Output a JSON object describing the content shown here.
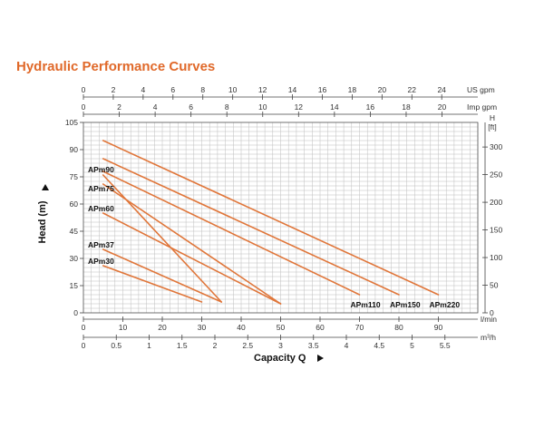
{
  "title": "Hydraulic Performance Curves",
  "chart_data": {
    "type": "line",
    "xlabel": "Capacity Q",
    "ylabel": "Head (m)",
    "x_unit": "l/min",
    "xlim": [
      0,
      100
    ],
    "ylim": [
      0,
      105
    ],
    "x_ticks": [
      0,
      10,
      20,
      30,
      40,
      50,
      60,
      70,
      80,
      90
    ],
    "y_ticks": [
      0,
      15,
      30,
      45,
      60,
      75,
      90,
      105
    ],
    "secondary_axes": {
      "top_outer": {
        "unit": "US gpm",
        "ticks": [
          "0",
          "2",
          "4",
          "6",
          "8",
          "10",
          "12",
          "14",
          "16",
          "18",
          "20",
          "22",
          "24"
        ]
      },
      "top_inner": {
        "unit": "Imp gpm",
        "ticks": [
          "0",
          "2",
          "4",
          "6",
          "8",
          "10",
          "12",
          "14",
          "16",
          "18",
          "20"
        ]
      },
      "bottom": {
        "unit": "m³/h",
        "ticks": [
          "0",
          "0.5",
          "1",
          "1.5",
          "2",
          "2.5",
          "3",
          "3.5",
          "4",
          "4.5",
          "5",
          "5.5"
        ]
      },
      "right": {
        "unit": "H\n[ft]",
        "unit_line1": "H",
        "unit_line2": "[ft]",
        "ticks": [
          "0",
          "50",
          "100",
          "150",
          "200",
          "250",
          "300"
        ]
      }
    },
    "grid": true,
    "series": [
      {
        "name": "APm30",
        "x": [
          5,
          30
        ],
        "y": [
          26,
          6
        ]
      },
      {
        "name": "APm37",
        "x": [
          5,
          35
        ],
        "y": [
          35,
          6
        ]
      },
      {
        "name": "APm60",
        "x": [
          5,
          50
        ],
        "y": [
          55,
          5
        ]
      },
      {
        "name": "APm75",
        "x": [
          5,
          50
        ],
        "y": [
          71,
          5
        ]
      },
      {
        "name": "APm90",
        "x": [
          5,
          35
        ],
        "y": [
          76,
          6
        ]
      },
      {
        "name": "APm110",
        "x": [
          5,
          70
        ],
        "y": [
          78,
          10
        ]
      },
      {
        "name": "APm150",
        "x": [
          5,
          80
        ],
        "y": [
          85,
          10
        ]
      },
      {
        "name": "APm220",
        "x": [
          5,
          90
        ],
        "y": [
          95,
          10
        ]
      }
    ],
    "curve_color": "#e0763a",
    "accent_color": "#e0692a"
  }
}
